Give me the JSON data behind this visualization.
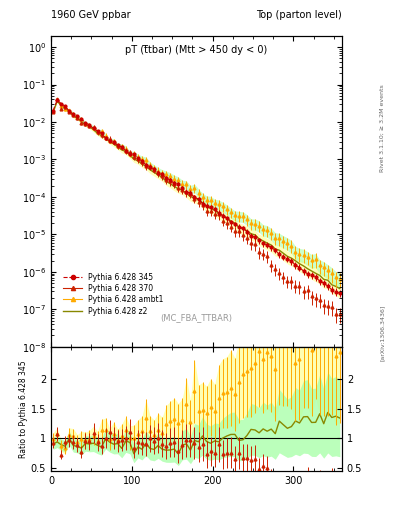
{
  "title_left": "1960 GeV ppbar",
  "title_right": "Top (parton level)",
  "main_title": "pT (t̅tbar) (Mtt > 450 dy < 0)",
  "watermark": "(MC_FBA_TTBAR)",
  "xlabel": "",
  "ylabel_main": "",
  "ylabel_ratio": "Ratio to Pythia 6.428 345",
  "right_label_top": "Rivet 3.1.10; ≥ 3.2M events",
  "right_label_bottom": "[arXiv:1306.3436]",
  "xlim": [
    0,
    360
  ],
  "ylim_main": [
    1e-08,
    2
  ],
  "ylim_ratio": [
    0.45,
    2.55
  ],
  "ratio_yticks": [
    0.5,
    1.0,
    1.5,
    2.0
  ],
  "series": [
    {
      "label": "Pythia 6.428 345",
      "color": "#cc0000",
      "linestyle": "dashed",
      "marker": "o",
      "markersize": 3,
      "linewidth": 0.8,
      "is_reference": true
    },
    {
      "label": "Pythia 6.428 370",
      "color": "#cc2200",
      "linestyle": "solid",
      "marker": "^",
      "markersize": 3,
      "linewidth": 0.8,
      "is_reference": false
    },
    {
      "label": "Pythia 6.428 ambt1",
      "color": "#ffaa00",
      "linestyle": "solid",
      "marker": "^",
      "markersize": 3,
      "linewidth": 0.8,
      "is_reference": false
    },
    {
      "label": "Pythia 6.428 z2",
      "color": "#888800",
      "linestyle": "solid",
      "marker": "",
      "markersize": 0,
      "linewidth": 1.0,
      "is_reference": false
    }
  ],
  "background_color": "#ffffff",
  "grid_color": "#cccccc",
  "ratio_band_color_ambt1": "#ffffaa",
  "ratio_band_color_z2": "#aaffaa"
}
